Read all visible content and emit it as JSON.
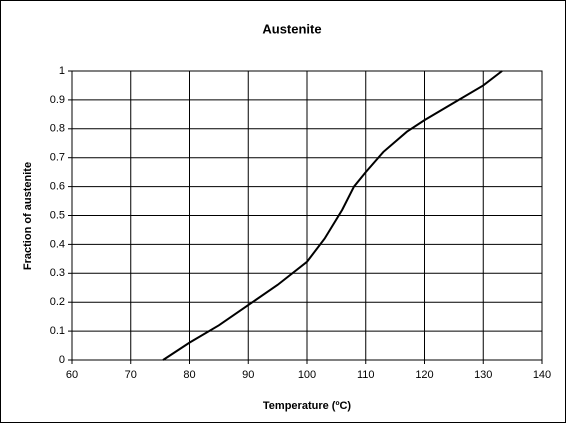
{
  "chart_data": {
    "type": "line",
    "title": "Austenite",
    "x_label": "Temperature (ºC)",
    "y_label": "Fraction of austenite",
    "series": [
      {
        "name": "Austenite",
        "color": "#000000",
        "x": [
          75.5,
          80,
          85,
          90,
          95,
          100,
          103,
          106,
          108,
          110,
          113,
          117,
          120,
          125,
          130,
          133.2
        ],
        "values": [
          0,
          0.06,
          0.12,
          0.19,
          0.26,
          0.34,
          0.42,
          0.52,
          0.6,
          0.65,
          0.72,
          0.79,
          0.83,
          0.89,
          0.95,
          1.0
        ]
      }
    ],
    "xlim": [
      60,
      140
    ],
    "xticks": [
      60,
      70,
      80,
      90,
      100,
      110,
      120,
      130,
      140
    ],
    "ylim": [
      0,
      1
    ],
    "yticks": [
      0,
      0.1,
      0.2,
      0.3,
      0.4,
      0.5,
      0.6,
      0.7,
      0.8,
      0.9,
      1
    ],
    "grid": true
  }
}
